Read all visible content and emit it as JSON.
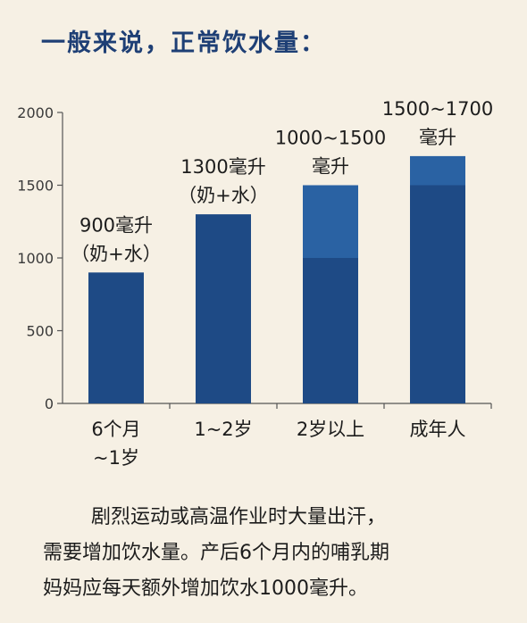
{
  "title": "一般来说，正常饮水量：",
  "chart_data": {
    "type": "bar",
    "categories": [
      [
        "6个月",
        "~1岁"
      ],
      [
        "1~2岁"
      ],
      [
        "2岁以上"
      ],
      [
        "成年人"
      ]
    ],
    "series": [
      {
        "low": [
          900,
          1300,
          1000,
          1500
        ],
        "high": [
          900,
          1300,
          1500,
          1700
        ]
      }
    ],
    "data_labels": [
      [
        "900毫升",
        "（奶+水）"
      ],
      [
        "1300毫升",
        "（奶+水）"
      ],
      [
        "1000~1500",
        "毫升"
      ],
      [
        "1500~1700",
        "毫升"
      ]
    ],
    "yticks": [
      "0",
      "500",
      "1000",
      "1500",
      "2000"
    ],
    "ylim": [
      0,
      2000
    ],
    "xlabel": "",
    "ylabel": "",
    "colors": {
      "bar": "#1e4a85",
      "range": "#2a62a3",
      "axis": "#555555"
    }
  },
  "note": {
    "lines": [
      "剧烈运动或高温作业时大量出汗，",
      "需要增加饮水量。产后6个月内的哺乳期",
      "妈妈应每天额外增加饮水1000毫升。"
    ]
  }
}
